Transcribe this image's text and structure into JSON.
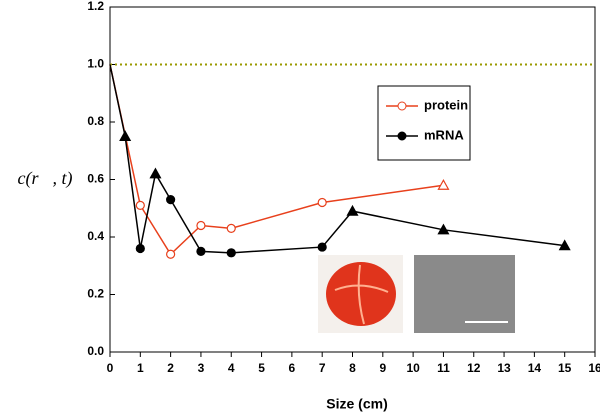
{
  "chart_data": {
    "type": "line",
    "xlabel": "Size (cm)",
    "ylabel": "c(r⃗, t)",
    "xlim": [
      0,
      16
    ],
    "xticks": [
      0,
      1,
      2,
      3,
      4,
      5,
      6,
      7,
      8,
      9,
      10,
      11,
      12,
      13,
      14,
      15,
      16
    ],
    "ylim": [
      0,
      1.2
    ],
    "yticks": [
      {
        "value": 0,
        "label": "0.0"
      },
      0.2,
      0.4,
      0.6,
      0.8,
      {
        "value": 1,
        "label": "1.0"
      },
      1.2
    ],
    "reference_line": {
      "y": 1,
      "color": "#999900"
    },
    "legend": "upper right",
    "series": [
      {
        "name": "protein",
        "color": "#e8401c",
        "filled": false,
        "x": [
          0,
          1,
          2,
          3,
          4,
          7,
          11
        ],
        "values": [
          1.0,
          0.51,
          0.34,
          0.44,
          0.43,
          0.52,
          0.58
        ],
        "markers": [
          "none",
          "circle",
          "circle",
          "circle",
          "circle",
          "circle",
          "triangle"
        ]
      },
      {
        "name": "mRNA",
        "color": "#000000",
        "filled": true,
        "x": [
          0,
          0.5,
          1,
          1.5,
          2,
          3,
          4,
          7,
          8,
          11,
          15
        ],
        "values": [
          1.0,
          0.75,
          0.36,
          0.62,
          0.53,
          0.35,
          0.345,
          0.365,
          0.49,
          0.425,
          0.37
        ],
        "markers": [
          "none",
          "triangle",
          "circle",
          "triangle",
          "circle",
          "circle",
          "circle",
          "circle",
          "triangle",
          "triangle",
          "triangle"
        ]
      }
    ]
  }
}
